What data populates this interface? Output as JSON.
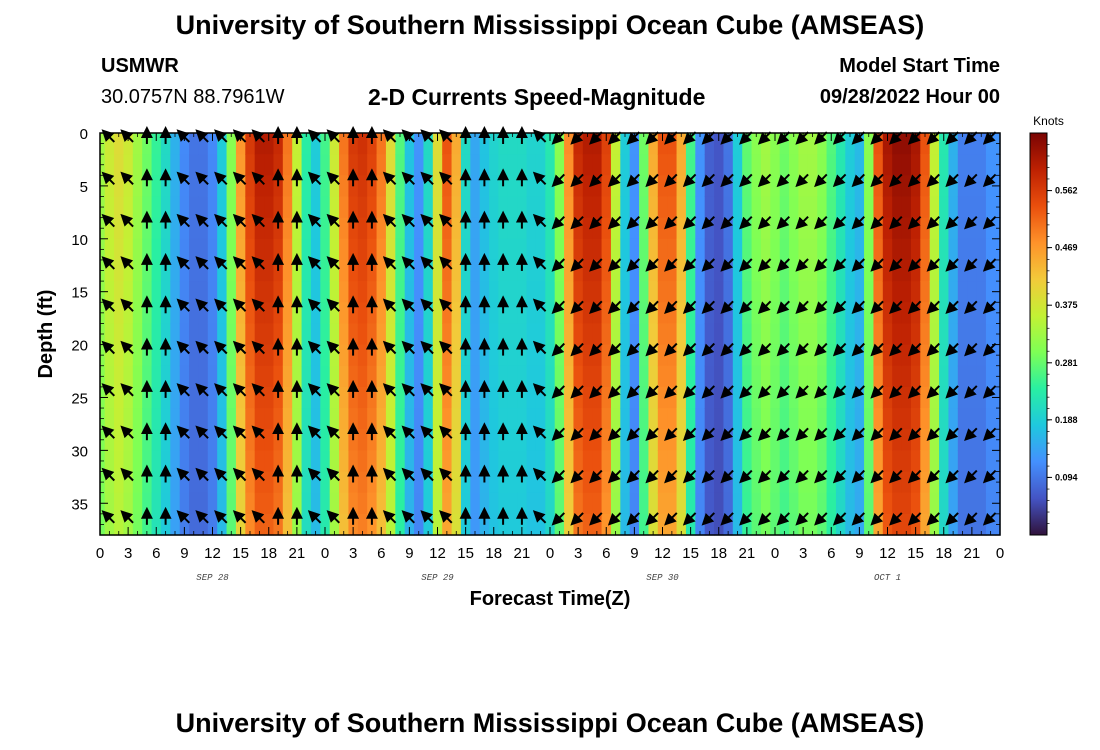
{
  "header": {
    "title": "University of Southern Mississippi Ocean Cube (AMSEAS)",
    "station": "USMWR",
    "coords": "30.0757N  88.7961W",
    "variable": "2-D Currents Speed-Magnitude",
    "model_start_label": "Model Start Time",
    "model_start_value": "09/28/2022 Hour 00"
  },
  "footer": {
    "title": "University of Southern Mississippi Ocean Cube (AMSEAS)"
  },
  "colorbar": {
    "unit": "Knots",
    "ticks": [
      "0.094",
      "0.188",
      "0.281",
      "0.375",
      "0.469",
      "0.562"
    ],
    "tick_values": [
      0.094,
      0.188,
      0.281,
      0.375,
      0.469,
      0.562
    ],
    "range": [
      0.0,
      0.656
    ],
    "colors": [
      "#30123b",
      "#4454c4",
      "#4490fe",
      "#1fc8de",
      "#29efa2",
      "#7eff55",
      "#c3f134",
      "#f2ca3a",
      "#fe922a",
      "#ea4f0d",
      "#be2102",
      "#7a0403"
    ]
  },
  "chart_data": {
    "type": "heatmap",
    "title": "2-D Currents Speed-Magnitude",
    "xlabel": "Forecast Time(Z)",
    "ylabel": "Depth (ft)",
    "x_range_hours": [
      0,
      96
    ],
    "y_range_ft": [
      0,
      38
    ],
    "x_tick_labels": [
      "0",
      "3",
      "6",
      "9",
      "12",
      "15",
      "18",
      "21",
      "0",
      "3",
      "6",
      "9",
      "12",
      "15",
      "18",
      "21",
      "0",
      "3",
      "6",
      "9",
      "12",
      "15",
      "18",
      "21",
      "0",
      "3",
      "6",
      "9",
      "12",
      "15",
      "18",
      "21",
      "0"
    ],
    "y_tick_values": [
      0,
      5,
      10,
      15,
      20,
      25,
      30,
      35
    ],
    "y_tick_labels": [
      "0",
      "5",
      "10",
      "15",
      "20",
      "25",
      "30",
      "35"
    ],
    "date_labels": [
      {
        "hour": 12,
        "text": "SEP 28"
      },
      {
        "hour": 36,
        "text": "SEP 29"
      },
      {
        "hour": 60,
        "text": "SEP 30"
      },
      {
        "hour": 84,
        "text": "OCT 1"
      }
    ],
    "speed_profile_hours": [
      0,
      1,
      2,
      3,
      4,
      5,
      6,
      7,
      8,
      9,
      10,
      11,
      12,
      13,
      14,
      15,
      16,
      17,
      18,
      19,
      20,
      21,
      22,
      23,
      24,
      25,
      26,
      27,
      28,
      29,
      30,
      31,
      32,
      33,
      34,
      35,
      36,
      37,
      38,
      39,
      40,
      41,
      42,
      43,
      44,
      45,
      46,
      47,
      48,
      49,
      50,
      51,
      52,
      53,
      54,
      55,
      56,
      57,
      58,
      59,
      60,
      61,
      62,
      63,
      64,
      65,
      66,
      67,
      68,
      69,
      70,
      71,
      72,
      73,
      74,
      75,
      76,
      77,
      78,
      79,
      80,
      81,
      82,
      83,
      84,
      85,
      86,
      87,
      88,
      89,
      90,
      91,
      92,
      93,
      94,
      95,
      96
    ],
    "speed_profile_knots": [
      0.32,
      0.36,
      0.38,
      0.36,
      0.32,
      0.28,
      0.24,
      0.2,
      0.15,
      0.11,
      0.09,
      0.09,
      0.11,
      0.18,
      0.3,
      0.44,
      0.53,
      0.57,
      0.57,
      0.55,
      0.47,
      0.35,
      0.23,
      0.18,
      0.25,
      0.36,
      0.47,
      0.53,
      0.54,
      0.52,
      0.47,
      0.38,
      0.26,
      0.17,
      0.12,
      0.2,
      0.38,
      0.5,
      0.42,
      0.2,
      0.14,
      0.17,
      0.19,
      0.2,
      0.2,
      0.2,
      0.19,
      0.19,
      0.22,
      0.3,
      0.45,
      0.55,
      0.57,
      0.57,
      0.52,
      0.35,
      0.18,
      0.12,
      0.28,
      0.42,
      0.5,
      0.5,
      0.42,
      0.25,
      0.12,
      0.07,
      0.06,
      0.09,
      0.18,
      0.27,
      0.3,
      0.32,
      0.3,
      0.28,
      0.3,
      0.32,
      0.32,
      0.3,
      0.26,
      0.22,
      0.18,
      0.16,
      0.3,
      0.5,
      0.58,
      0.6,
      0.6,
      0.58,
      0.5,
      0.35,
      0.22,
      0.15,
      0.1,
      0.1,
      0.1,
      0.12,
      0.12
    ],
    "arrow_hours": [
      1,
      3,
      5,
      7,
      9,
      11,
      13,
      15,
      17,
      19,
      21,
      23,
      25,
      27,
      29,
      31,
      33,
      35,
      37,
      39,
      41,
      43,
      45,
      47,
      49,
      51,
      53,
      55,
      57,
      59,
      61,
      63,
      65,
      67,
      69,
      71,
      73,
      75,
      77,
      79,
      81,
      83,
      85,
      87,
      89,
      91,
      93,
      95
    ],
    "arrow_depths_ft": [
      0,
      4,
      8,
      12,
      16,
      20,
      24,
      28,
      32,
      36
    ],
    "arrow_directions_deg": [
      225,
      225,
      270,
      270,
      225,
      225,
      225,
      225,
      225,
      270,
      270,
      225,
      225,
      270,
      270,
      225,
      225,
      225,
      225,
      270,
      270,
      270,
      270,
      225,
      135,
      135,
      135,
      135,
      135,
      135,
      135,
      135,
      135,
      135,
      135,
      135,
      135,
      135,
      135,
      135,
      135,
      135,
      135,
      135,
      135,
      135,
      135,
      135
    ]
  }
}
